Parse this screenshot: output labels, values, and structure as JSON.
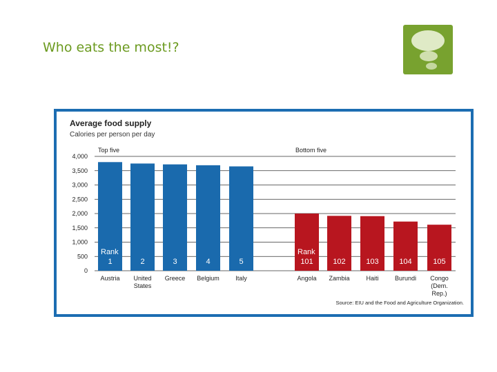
{
  "slide": {
    "title": "Who eats the most!?"
  },
  "logo": {
    "icon": "thought-bubble-icon",
    "colors": {
      "background": "#78a22f",
      "bubble": "#dfeac6"
    }
  },
  "chart_data": {
    "type": "bar",
    "title": "Average food supply",
    "subtitle": "Calories per person per day",
    "group_labels": [
      "Top five",
      "Bottom five"
    ],
    "rank_word": "Rank",
    "ylim": [
      0,
      4000
    ],
    "yticks": [
      "0",
      "500",
      "1,000",
      "1,500",
      "2,000",
      "2,500",
      "3,000",
      "3,500",
      "4,000"
    ],
    "ytick_values": [
      0,
      500,
      1000,
      1500,
      2000,
      2500,
      3000,
      3500,
      4000
    ],
    "grid": true,
    "categories": [
      {
        "label": [
          "Austria"
        ],
        "rank": "1",
        "value": 3800,
        "group": 0
      },
      {
        "label": [
          "United",
          "States"
        ],
        "rank": "2",
        "value": 3750,
        "group": 0
      },
      {
        "label": [
          "Greece"
        ],
        "rank": "3",
        "value": 3720,
        "group": 0
      },
      {
        "label": [
          "Belgium"
        ],
        "rank": "4",
        "value": 3690,
        "group": 0
      },
      {
        "label": [
          "Italy"
        ],
        "rank": "5",
        "value": 3650,
        "group": 0
      },
      {
        "label": [
          "Angola"
        ],
        "rank": "101",
        "value": 2000,
        "group": 1
      },
      {
        "label": [
          "Zambia"
        ],
        "rank": "102",
        "value": 1920,
        "group": 1
      },
      {
        "label": [
          "Haiti"
        ],
        "rank": "103",
        "value": 1910,
        "group": 1
      },
      {
        "label": [
          "Burundi"
        ],
        "rank": "104",
        "value": 1720,
        "group": 1
      },
      {
        "label": [
          "Congo",
          "(Dem.",
          "Rep.)"
        ],
        "rank": "105",
        "value": 1610,
        "group": 1
      }
    ],
    "colors": {
      "top": "#1a6aad",
      "bottom": "#b8161f",
      "grid": "#333333",
      "frame": "#1c6db2"
    },
    "source": "Source: EIU and the Food and Agriculture Organization."
  }
}
